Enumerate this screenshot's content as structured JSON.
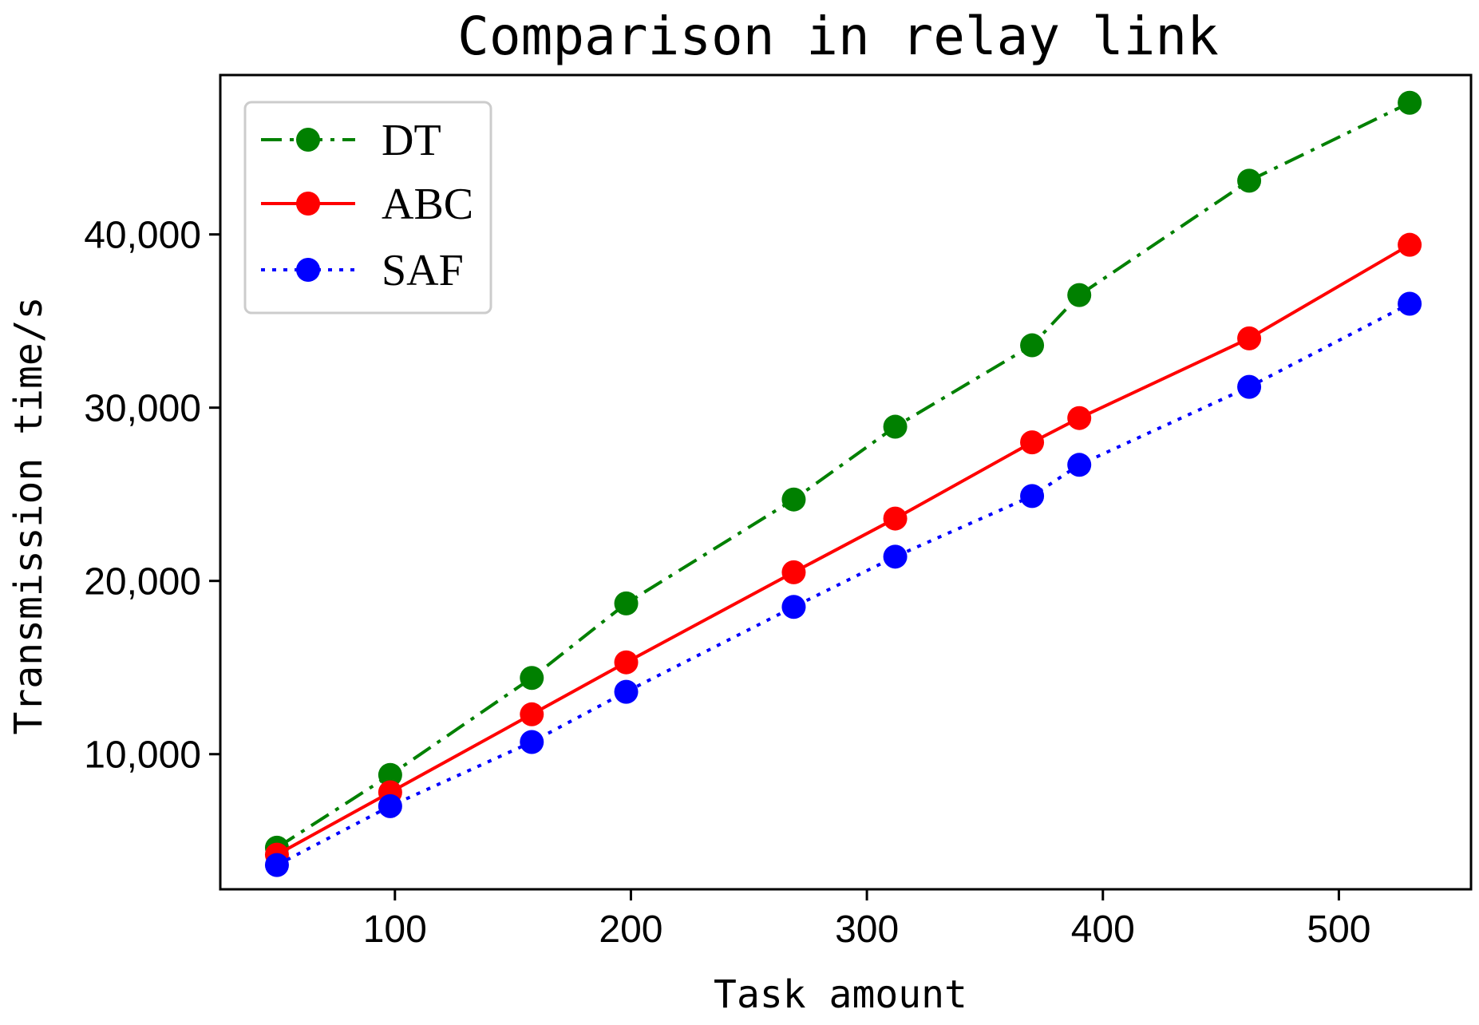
{
  "chart_data": {
    "type": "line",
    "title": "Comparison in relay link",
    "xlabel": "Task amount",
    "ylabel": "Transmission time/s",
    "xlim": [
      26,
      556
    ],
    "ylim": [
      2200,
      49200
    ],
    "xticks": [
      100,
      200,
      300,
      400,
      500
    ],
    "xtick_labels": [
      "100",
      "200",
      "300",
      "400",
      "500"
    ],
    "yticks": [
      10000,
      20000,
      30000,
      40000
    ],
    "ytick_labels": [
      "10,000",
      "20,000",
      "30,000",
      "40,000"
    ],
    "grid": false,
    "legend_position": "top-left",
    "series": [
      {
        "name": "DT",
        "color": "#008000",
        "linestyle": "dashdot",
        "marker": "circle",
        "x": [
          50,
          98,
          158,
          198,
          269,
          312,
          370,
          390,
          462,
          530
        ],
        "y": [
          4600,
          8800,
          14400,
          18700,
          24700,
          28900,
          33600,
          36500,
          43100,
          47600
        ]
      },
      {
        "name": "ABC",
        "color": "#ff0000",
        "linestyle": "solid",
        "marker": "circle",
        "x": [
          50,
          98,
          158,
          198,
          269,
          312,
          370,
          390,
          462,
          530
        ],
        "y": [
          4200,
          7800,
          12300,
          15300,
          20500,
          23600,
          28000,
          29400,
          34000,
          39400
        ]
      },
      {
        "name": "SAF",
        "color": "#0000ff",
        "linestyle": "dotted",
        "marker": "circle",
        "x": [
          50,
          98,
          158,
          198,
          269,
          312,
          370,
          390,
          462,
          530
        ],
        "y": [
          3600,
          7000,
          10700,
          13600,
          18500,
          21400,
          24900,
          26700,
          31200,
          36000
        ]
      }
    ]
  }
}
